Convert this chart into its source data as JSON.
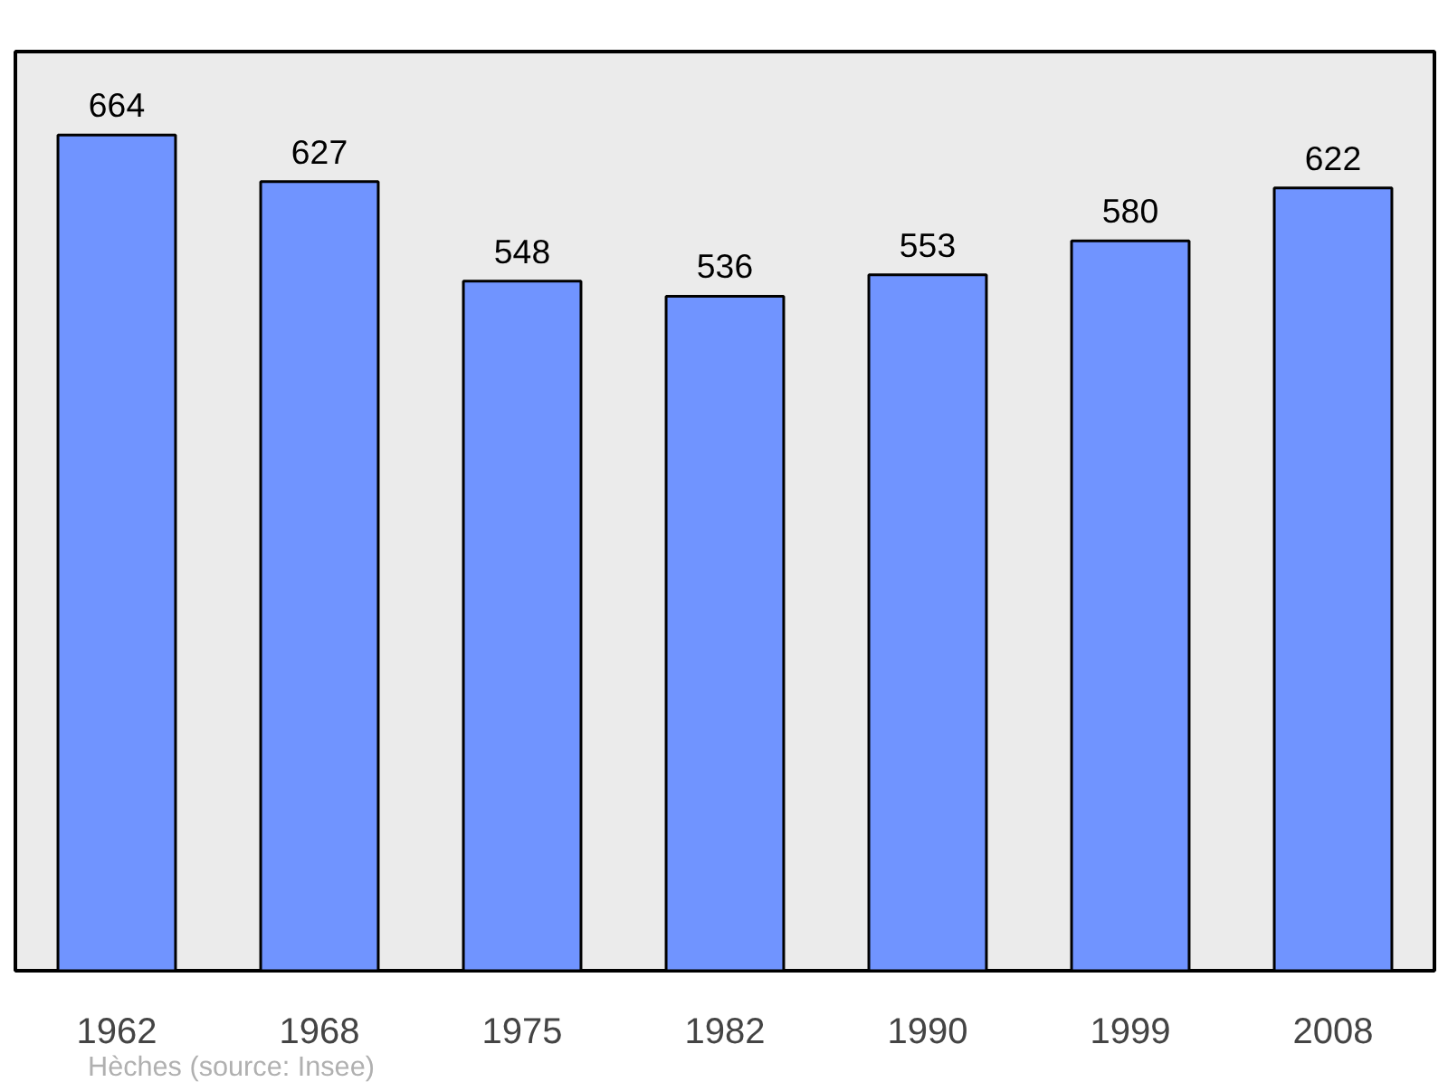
{
  "chart_data": {
    "type": "bar",
    "categories": [
      "1962",
      "1968",
      "1975",
      "1982",
      "1990",
      "1999",
      "2008"
    ],
    "values": [
      664,
      627,
      548,
      536,
      553,
      580,
      622
    ],
    "color": "#7094ff",
    "data_labels": true,
    "annotations": [
      "Hèches    (source: Insee)"
    ]
  }
}
